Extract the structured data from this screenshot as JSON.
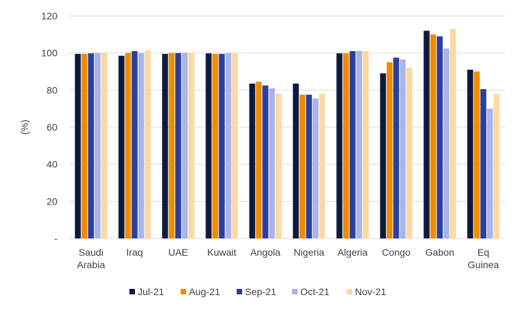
{
  "chart_data": {
    "type": "bar",
    "title": "",
    "xlabel": "",
    "ylabel": "(%)",
    "ylim": [
      0,
      120
    ],
    "yticks": [
      0,
      20,
      40,
      60,
      80,
      100,
      120
    ],
    "ytick_labels": [
      "-",
      "20",
      "40",
      "60",
      "80",
      "100",
      "120"
    ],
    "grid": true,
    "legend_position": "bottom",
    "categories": [
      [
        "Saudi",
        "Arabia"
      ],
      [
        "Iraq"
      ],
      [
        "UAE"
      ],
      [
        "Kuwait"
      ],
      [
        "Angola"
      ],
      [
        "Nigeria"
      ],
      [
        "Algeria"
      ],
      [
        "Congo"
      ],
      [
        "Gabon"
      ],
      [
        "Eq",
        "Guinea"
      ]
    ],
    "series": [
      {
        "name": "Jul-21",
        "color": "#0d1a3d",
        "values": [
          99.5,
          98.5,
          99.5,
          99.8,
          83.5,
          83.5,
          99.8,
          89,
          112,
          91
        ]
      },
      {
        "name": "Aug-21",
        "color": "#f08c00",
        "values": [
          99.5,
          100,
          100,
          99.5,
          84.5,
          77.5,
          99.8,
          95,
          110,
          90
        ]
      },
      {
        "name": "Sep-21",
        "color": "#2a3f9e",
        "values": [
          99.8,
          101,
          100,
          99.5,
          82.5,
          77.5,
          101,
          97.5,
          109,
          80.5
        ]
      },
      {
        "name": "Oct-21",
        "color": "#a9b4e8",
        "values": [
          100,
          100,
          100,
          100,
          81,
          75.5,
          101,
          96.5,
          102.5,
          70
        ]
      },
      {
        "name": "Nov-21",
        "color": "#fbd9a0",
        "values": [
          100,
          101.5,
          100,
          100,
          78,
          78,
          101,
          92,
          113,
          78
        ]
      }
    ]
  }
}
